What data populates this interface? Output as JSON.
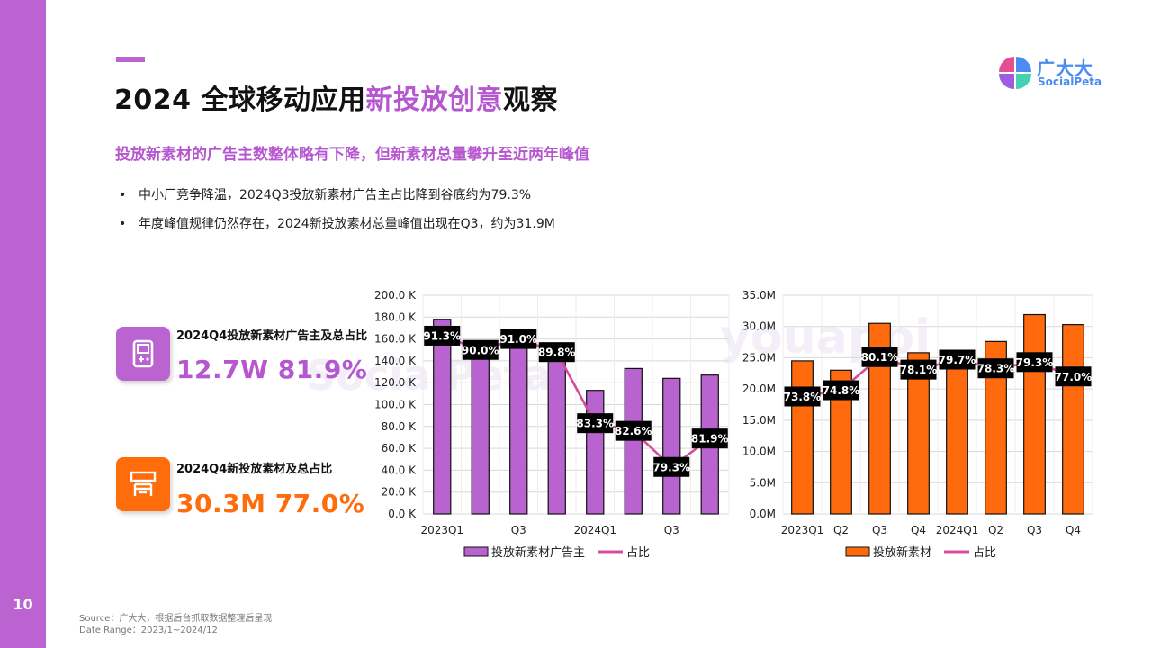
{
  "page_number": "10",
  "title": {
    "prefix": "2024 全球移动应用",
    "highlight": "新投放创意",
    "suffix": "观察"
  },
  "logo": {
    "cn": "广大大",
    "en": "SocialPeta"
  },
  "subtitle": "投放新素材的广告主数整体略有下降，但新素材总量攀升至近两年峰值",
  "bullets": [
    "中小厂竞争降温，2024Q3投放新素材广告主占比降到谷底约为79.3%",
    "年度峰值规律仍然存在，2024新投放素材总量峰值出现在Q3，约为31.9M"
  ],
  "watermark": {
    "left": "SocialPeta",
    "right": "youappi"
  },
  "kpis": [
    {
      "label": "2024Q4投放新素材广告主及总占比",
      "value": "12.7W 81.9%",
      "color": "#bb63d0",
      "icon": "game-controller-icon"
    },
    {
      "label": "2024Q4新投放素材及总占比",
      "value": "30.3M 77.0%",
      "color": "#ff6c0c",
      "icon": "ad-board-icon"
    }
  ],
  "footer": {
    "source": "Source：广大大，根据后台抓取数据整理后呈现",
    "date_range": "Date Range：2023/1~2024/12"
  },
  "chart_data": [
    {
      "type": "bar",
      "name": "advertisers",
      "categories": [
        "2023Q1",
        "Q2",
        "Q3",
        "Q4",
        "2024Q1",
        "Q2",
        "Q3",
        "Q4"
      ],
      "tick_labels": [
        "2023Q1",
        "",
        "Q3",
        "",
        "2024Q1",
        "",
        "Q3",
        ""
      ],
      "series": [
        {
          "name": "投放新素材广告主",
          "kind": "bar",
          "axis": "left",
          "color": "#b963d0",
          "values": [
            178000,
            146000,
            156000,
            156000,
            113000,
            133000,
            124000,
            127000
          ]
        },
        {
          "name": "占比",
          "kind": "line",
          "axis": "right",
          "color": "#d44d98",
          "values": [
            91.3,
            90.0,
            91.0,
            89.8,
            83.3,
            82.6,
            79.3,
            81.9
          ],
          "labels": [
            "91.3%",
            "90.0%",
            "91.0%",
            "89.8%",
            "83.3%",
            "82.6%",
            "79.3%",
            "81.9%"
          ]
        }
      ],
      "y_left": {
        "min": 0,
        "max": 200000,
        "step": 20000,
        "ticks": [
          "0.0 K",
          "20.0 K",
          "40.0 K",
          "60.0 K",
          "80.0 K",
          "100.0 K",
          "120.0 K",
          "140.0 K",
          "160.0 K",
          "180.0 K",
          "200.0 K"
        ]
      },
      "y_right": {
        "min": 75,
        "max": 95
      },
      "legend": [
        "投放新素材广告主",
        "占比"
      ]
    },
    {
      "type": "bar",
      "name": "creatives",
      "categories": [
        "2023Q1",
        "Q2",
        "Q3",
        "Q4",
        "2024Q1",
        "Q2",
        "Q3",
        "Q4"
      ],
      "tick_labels": [
        "2023Q1",
        "Q2",
        "Q3",
        "Q4",
        "2024Q1",
        "Q2",
        "Q3",
        "Q4"
      ],
      "series": [
        {
          "name": "投放新素材",
          "kind": "bar",
          "axis": "left",
          "color": "#ff6a0f",
          "values": [
            24.5,
            23.0,
            30.5,
            25.8,
            25.8,
            27.6,
            31.9,
            30.3
          ]
        },
        {
          "name": "占比",
          "kind": "line",
          "axis": "right",
          "color": "#d44d98",
          "values": [
            73.8,
            74.8,
            80.1,
            78.1,
            79.7,
            78.3,
            79.3,
            77.0
          ],
          "labels": [
            "73.8%",
            "74.8%",
            "80.1%",
            "78.1%",
            "79.7%",
            "78.3%",
            "79.3%",
            "77.0%"
          ]
        }
      ],
      "y_left": {
        "min": 0,
        "max": 35,
        "step": 5,
        "ticks": [
          "0.0M",
          "5.0M",
          "10.0M",
          "15.0M",
          "20.0M",
          "25.0M",
          "30.0M",
          "35.0M"
        ]
      },
      "y_right": {
        "min": 55,
        "max": 90
      },
      "legend": [
        "投放新素材",
        "占比"
      ]
    }
  ]
}
